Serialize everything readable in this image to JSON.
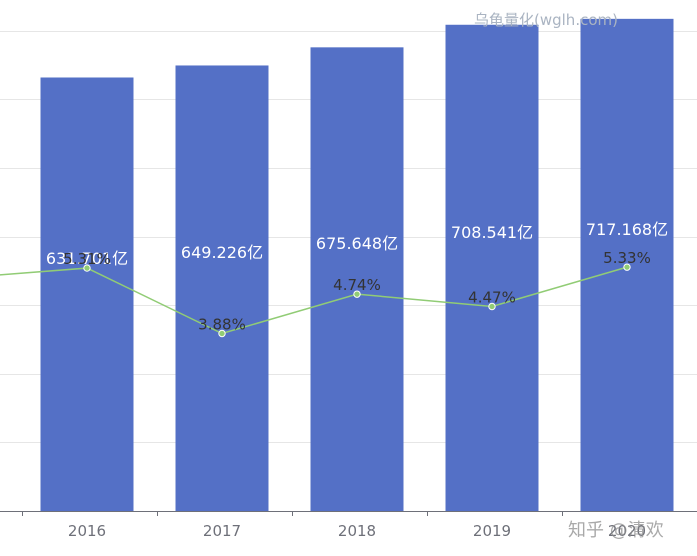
{
  "watermarks": {
    "top": "乌龟量化(wglh.com)",
    "bottom": "知乎 @清欢"
  },
  "colors": {
    "bar": "#5470c6",
    "line": "#91cc75",
    "grid": "#e6e6e6",
    "axis": "#6e7079",
    "bar_label": "#ffffff",
    "line_label": "#333333"
  },
  "chart_data": {
    "type": "bar",
    "categories": [
      "2016",
      "2017",
      "2018",
      "2019",
      "2020"
    ],
    "series": [
      {
        "type": "bar",
        "values": [
          631.701,
          649.226,
          675.648,
          708.541,
          717.168
        ],
        "labels": [
          "631.701亿",
          "649.226亿",
          "675.648亿",
          "708.541亿",
          "717.168亿"
        ]
      },
      {
        "type": "line",
        "values": [
          5.31,
          3.88,
          4.74,
          4.47,
          5.33
        ],
        "labels": [
          "5.31%",
          "3.88%",
          "4.74%",
          "4.47%",
          "5.33%"
        ]
      }
    ],
    "ylim": [
      0,
      800
    ],
    "y2lim": [
      0,
      12
    ],
    "line_prev_value": 5.08,
    "grid": true
  }
}
